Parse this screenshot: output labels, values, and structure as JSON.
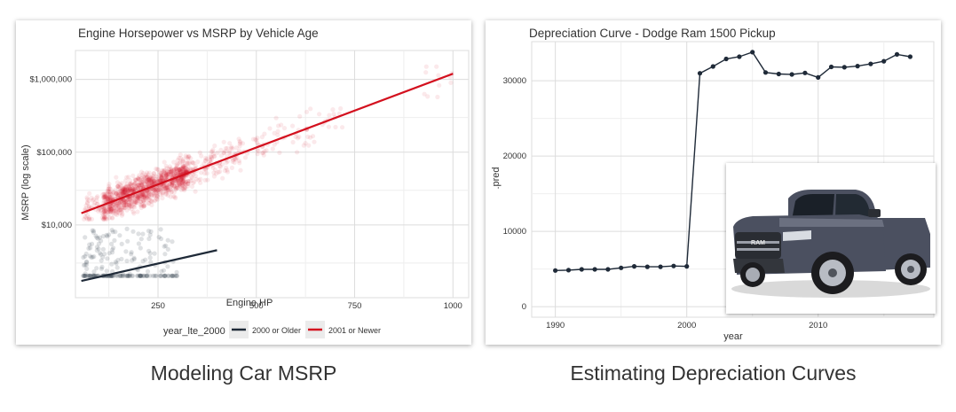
{
  "colors": {
    "older": "#1f2a38",
    "newer": "#d3101e",
    "pickup_body": "#4b5060"
  },
  "left_chart": {
    "chart_data": {
      "type": "scatter",
      "title": "Engine Horsepower vs MSRP by Vehicle Age",
      "xlabel": "Engine HP",
      "ylabel": "MSRP (log scale)",
      "y_scale": "log",
      "xlim": [
        40,
        1040
      ],
      "ylim": [
        1000,
        2500000
      ],
      "x_ticks": [
        250,
        500,
        750,
        1000
      ],
      "x_tick_labels": [
        "250",
        "500",
        "750",
        "1000"
      ],
      "y_ticks": [
        10000,
        100000,
        1000000
      ],
      "y_tick_labels": [
        "$10,000",
        "$100,000",
        "$1,000,000"
      ],
      "grid": true,
      "legend_title": "year_lte_2000",
      "legend_position": "bottom",
      "series": [
        {
          "name": "2000 or Older",
          "color": "#1f2a38",
          "point_hp_range": [
            60,
            300
          ],
          "point_msrp_range": [
            2000,
            10000
          ],
          "point_msrp_floor": 2000,
          "point_count": 220,
          "trend": [
            {
              "x": 55,
              "y": 1700
            },
            {
              "x": 400,
              "y": 4500
            }
          ]
        },
        {
          "name": "2001 or Newer",
          "color": "#d3101e",
          "point_hp_range": [
            60,
            1000
          ],
          "point_msrp_range": [
            12000,
            1500000
          ],
          "point_count": 1400,
          "trend": [
            {
              "x": 55,
              "y": 14500
            },
            {
              "x": 1000,
              "y": 1200000
            }
          ]
        }
      ]
    }
  },
  "right_chart": {
    "chart_data": {
      "type": "line",
      "title": "Depreciation Curve - Dodge Ram 1500 Pickup",
      "xlabel": "year",
      "ylabel": ".pred",
      "xlim": [
        1988.2,
        2018.8
      ],
      "ylim": [
        -1400,
        35200
      ],
      "x_ticks": [
        1990,
        2000,
        2010
      ],
      "x_tick_labels": [
        "1990",
        "2000",
        "2010"
      ],
      "y_ticks": [
        0,
        10000,
        20000,
        30000
      ],
      "y_tick_labels": [
        "0",
        "10000",
        "20000",
        "30000"
      ],
      "grid": true,
      "x": [
        1990,
        1991,
        1992,
        1993,
        1994,
        1995,
        1996,
        1997,
        1998,
        1999,
        2000,
        2001,
        2002,
        2003,
        2004,
        2005,
        2006,
        2007,
        2008,
        2009,
        2010,
        2011,
        2012,
        2013,
        2014,
        2015,
        2016,
        2017
      ],
      "values": [
        4800,
        4850,
        4950,
        4950,
        4950,
        5150,
        5350,
        5300,
        5300,
        5400,
        5350,
        31000,
        31900,
        32900,
        33200,
        33800,
        31100,
        30900,
        30850,
        31050,
        30450,
        31850,
        31800,
        31950,
        32250,
        32600,
        33500,
        33200
      ],
      "series_name": "Dodge Ram 1500 Pickup"
    },
    "photo": {
      "image_of": "pickup-truck",
      "badge_text": "RAM"
    }
  },
  "captions": {
    "left": "Modeling Car MSRP",
    "right": "Estimating Depreciation Curves"
  }
}
